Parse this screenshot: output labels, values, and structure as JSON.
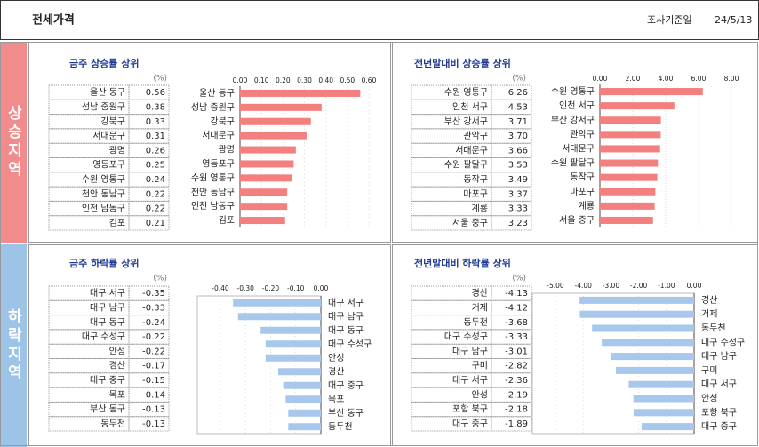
{
  "header": {
    "title": "전세가격",
    "date_label": "조사기준일",
    "date": "24/5/13"
  },
  "sections": [
    "상승지역",
    "하락지역"
  ],
  "chart_data": [
    {
      "type": "bar",
      "title": "금주 상승률 상위",
      "unit": "(%)",
      "color": "#f47f7f",
      "grid": true,
      "categories": [
        "울산 동구",
        "성남 중원구",
        "강북구",
        "서대문구",
        "광명",
        "영등포구",
        "수원 영통구",
        "천안 동남구",
        "인천 남동구",
        "김포"
      ],
      "values": [
        0.56,
        0.38,
        0.33,
        0.31,
        0.26,
        0.25,
        0.24,
        0.22,
        0.22,
        0.21
      ],
      "value_labels": [
        "0.56",
        "0.38",
        "0.33",
        "0.31",
        "0.26",
        "0.25",
        "0.24",
        "0.22",
        "0.22",
        "0.21"
      ],
      "xlim": [
        0,
        0.6
      ],
      "xticks": [
        {
          "value": 0,
          "label": "0.00"
        },
        {
          "value": 0.1,
          "label": "0.10"
        },
        {
          "value": 0.2,
          "label": "0.20"
        },
        {
          "value": 0.3,
          "label": "0.30"
        },
        {
          "value": 0.4,
          "label": "0.40"
        },
        {
          "value": 0.5,
          "label": "0.50"
        },
        {
          "value": 0.6,
          "label": "0.60"
        }
      ]
    },
    {
      "type": "bar",
      "title": "전년말대비 상승률 상위",
      "unit": "(%)",
      "color": "#f47f7f",
      "grid": true,
      "categories": [
        "수원 영통구",
        "인천 서구",
        "부산 강서구",
        "관악구",
        "서대문구",
        "수원 팔달구",
        "동작구",
        "마포구",
        "계룡",
        "서울 중구"
      ],
      "values": [
        6.26,
        4.53,
        3.71,
        3.7,
        3.66,
        3.53,
        3.49,
        3.37,
        3.33,
        3.23
      ],
      "value_labels": [
        "6.26",
        "4.53",
        "3.71",
        "3.70",
        "3.66",
        "3.53",
        "3.49",
        "3.37",
        "3.33",
        "3.23"
      ],
      "xlim": [
        0,
        8
      ],
      "xticks": [
        {
          "value": 0,
          "label": "0.00"
        },
        {
          "value": 2,
          "label": "2.00"
        },
        {
          "value": 4,
          "label": "4.00"
        },
        {
          "value": 6,
          "label": "6.00"
        },
        {
          "value": 8,
          "label": "8.00"
        }
      ]
    },
    {
      "type": "bar",
      "title": "금주 하락률 상위",
      "unit": "(%)",
      "color": "#a7c8ec",
      "grid": true,
      "categories": [
        "대구 서구",
        "대구 남구",
        "대구 동구",
        "대구 수성구",
        "안성",
        "경산",
        "대구 중구",
        "목포",
        "부산 동구",
        "동두천"
      ],
      "values": [
        -0.35,
        -0.33,
        -0.24,
        -0.22,
        -0.22,
        -0.17,
        -0.15,
        -0.14,
        -0.13,
        -0.13
      ],
      "value_labels": [
        "-0.35",
        "-0.33",
        "-0.24",
        "-0.22",
        "-0.22",
        "-0.17",
        "-0.15",
        "-0.14",
        "-0.13",
        "-0.13"
      ],
      "xlim": [
        -0.4,
        0
      ],
      "xticks": [
        {
          "value": -0.4,
          "label": "-0.40"
        },
        {
          "value": -0.3,
          "label": "-0.30"
        },
        {
          "value": -0.2,
          "label": "-0.20"
        },
        {
          "value": -0.1,
          "label": "-0.10"
        },
        {
          "value": 0,
          "label": "0.00"
        }
      ]
    },
    {
      "type": "bar",
      "title": "전년말대비 하락률 상위",
      "unit": "(%)",
      "color": "#a7c8ec",
      "grid": true,
      "categories": [
        "경산",
        "거제",
        "동두천",
        "대구 수성구",
        "대구 남구",
        "구미",
        "대구 서구",
        "안성",
        "포항 북구",
        "대구 중구"
      ],
      "values": [
        -4.13,
        -4.12,
        -3.68,
        -3.33,
        -3.01,
        -2.82,
        -2.36,
        -2.19,
        -2.18,
        -1.89
      ],
      "value_labels": [
        "-4.13",
        "-4.12",
        "-3.68",
        "-3.33",
        "-3.01",
        "-2.82",
        "-2.36",
        "-2.19",
        "-2.18",
        "-1.89"
      ],
      "xlim": [
        -5,
        0
      ],
      "xticks": [
        {
          "value": -5,
          "label": "-5.00"
        },
        {
          "value": -4,
          "label": "-4.00"
        },
        {
          "value": -3,
          "label": "-3.00"
        },
        {
          "value": -2,
          "label": "-2.00"
        },
        {
          "value": -1,
          "label": "-1.00"
        },
        {
          "value": 0,
          "label": "0.00"
        }
      ]
    }
  ]
}
